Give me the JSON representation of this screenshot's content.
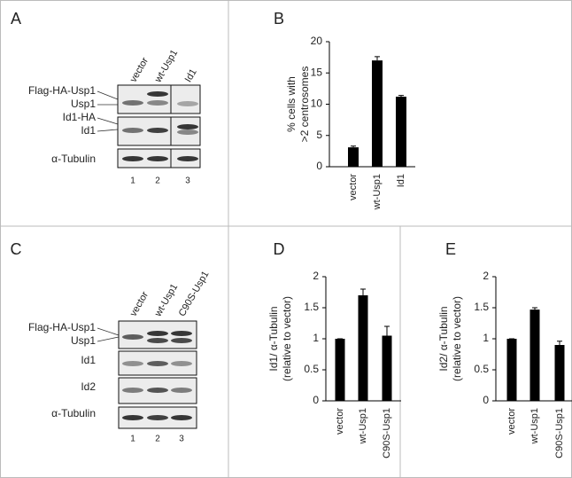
{
  "blot_a": {
    "panel": "A",
    "lanes": [
      "vector",
      "wt-Usp1",
      "Id1"
    ],
    "rows": [
      "Flag-HA-Usp1",
      "Usp1",
      "Id1-HA",
      "Id1",
      "α-Tubulin"
    ],
    "lane_numbers": [
      "1",
      "2",
      "3"
    ]
  },
  "blot_c": {
    "panel": "C",
    "lanes": [
      "vector",
      "wt-Usp1",
      "C90S-Usp1"
    ],
    "rows": [
      "Flag-HA-Usp1",
      "Usp1",
      "Id1",
      "Id2",
      "α-Tubulin"
    ],
    "lane_numbers": [
      "1",
      "2",
      "3"
    ]
  },
  "chart_data": [
    {
      "type": "bar",
      "panel": "B",
      "ylabel": [
        "% cells with",
        ">2 centrosomes"
      ],
      "categories": [
        "vector",
        "wt-Usp1",
        "Id1"
      ],
      "values": [
        3.1,
        17,
        11.2
      ],
      "errors": [
        0.2,
        0.6,
        0.2
      ],
      "color": "#000000",
      "ylim": [
        0,
        20
      ],
      "yticks": [
        0,
        5,
        10,
        15,
        20
      ]
    },
    {
      "type": "bar",
      "panel": "D",
      "ylabel": [
        "Id1/ α-Tubulin",
        "(relative to vector)"
      ],
      "categories": [
        "vector",
        "wt-Usp1",
        "C90S-Usp1"
      ],
      "values": [
        1,
        1.7,
        1.05
      ],
      "errors": [
        0,
        0.1,
        0.15
      ],
      "color": "#000000",
      "ylim": [
        0,
        2
      ],
      "yticks": [
        0,
        0.5,
        1,
        1.5,
        2
      ]
    },
    {
      "type": "bar",
      "panel": "E",
      "ylabel": [
        "Id2/ α-Tubulin",
        "(relative to vector)"
      ],
      "categories": [
        "vector",
        "wt-Usp1",
        "C90S-Usp1"
      ],
      "values": [
        1,
        1.47,
        0.9
      ],
      "errors": [
        0,
        0.03,
        0.06
      ],
      "color": "#000000",
      "ylim": [
        0,
        2
      ],
      "yticks": [
        0,
        0.5,
        1,
        1.5,
        2
      ]
    }
  ]
}
